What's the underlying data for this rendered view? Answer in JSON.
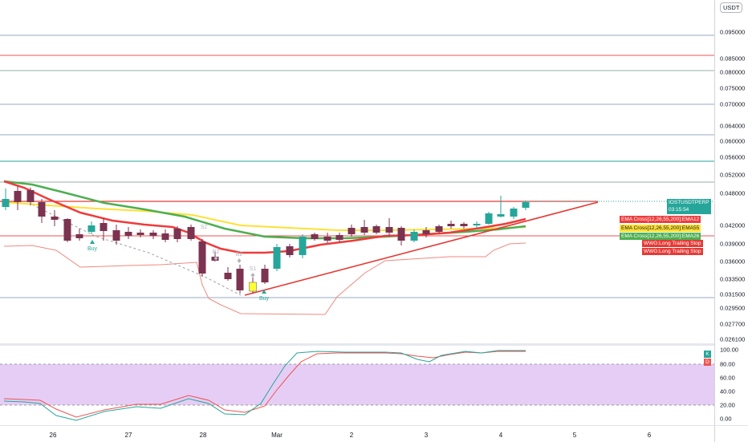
{
  "chart": {
    "symbol": "IOSTUSDTPERP",
    "currency": "USDT",
    "last_price": "0.046227",
    "countdown": "03:15:54",
    "colors": {
      "up": "#26a69a",
      "down": "#7b3350",
      "highlight": "#ffff33",
      "ema12": "#ef3b3b",
      "ema55": "#ffe033",
      "ema26": "#4caf50",
      "trailing_stop": "#e53935",
      "osc_band": "#e0c4f5"
    },
    "price_axis": [
      "0.095000",
      "0.085000",
      "0.080000",
      "0.075000",
      "0.070000",
      "0.064000",
      "0.060000",
      "0.056000",
      "0.052000",
      "0.048000",
      "0.042000",
      "0.039000",
      "0.036000",
      "0.033500",
      "0.031500",
      "0.029500",
      "0.027700",
      "0.026100"
    ],
    "osc_axis": [
      "100.00",
      "80.00",
      "60.00",
      "40.00",
      "20.00",
      "0.00"
    ],
    "time_axis": [
      "26",
      "27",
      "28",
      "Mar",
      "2",
      "3",
      "4",
      "5",
      "6"
    ],
    "labels": [
      {
        "text": "EMA Cross[12,26,55,200]:EMA12",
        "bg": "#ef3b3b",
        "fg": "#ffffff"
      },
      {
        "text": "EMA Cross[12,26,55,200]:EMA55",
        "bg": "#ffe033",
        "fg": "#131722"
      },
      {
        "text": "EMA Cross[12,26,55,200]:EMA26",
        "bg": "#4caf50",
        "fg": "#ffffff"
      },
      {
        "text": "WWG:Long Trailing Stop",
        "bg": "#e53935",
        "fg": "#ffffff"
      },
      {
        "text": "WWG:Long Trailing Stop",
        "bg": "#e53935",
        "fg": "#ffffff"
      }
    ],
    "osc_badges": [
      {
        "text": "K",
        "bg": "#26a69a"
      },
      {
        "text": "D",
        "bg": "#ef5350"
      }
    ],
    "markers": [
      {
        "text": "Buy",
        "color": "#26a69a"
      },
      {
        "text": "Buy",
        "color": "#26a69a"
      },
      {
        "text": "B2",
        "color": "#b2b5be"
      },
      {
        "text": "B2",
        "color": "#b2b5be"
      },
      {
        "text": "S1",
        "color": "#b2b5be"
      },
      {
        "text": "S2",
        "color": "#b2b5be"
      }
    ]
  }
}
